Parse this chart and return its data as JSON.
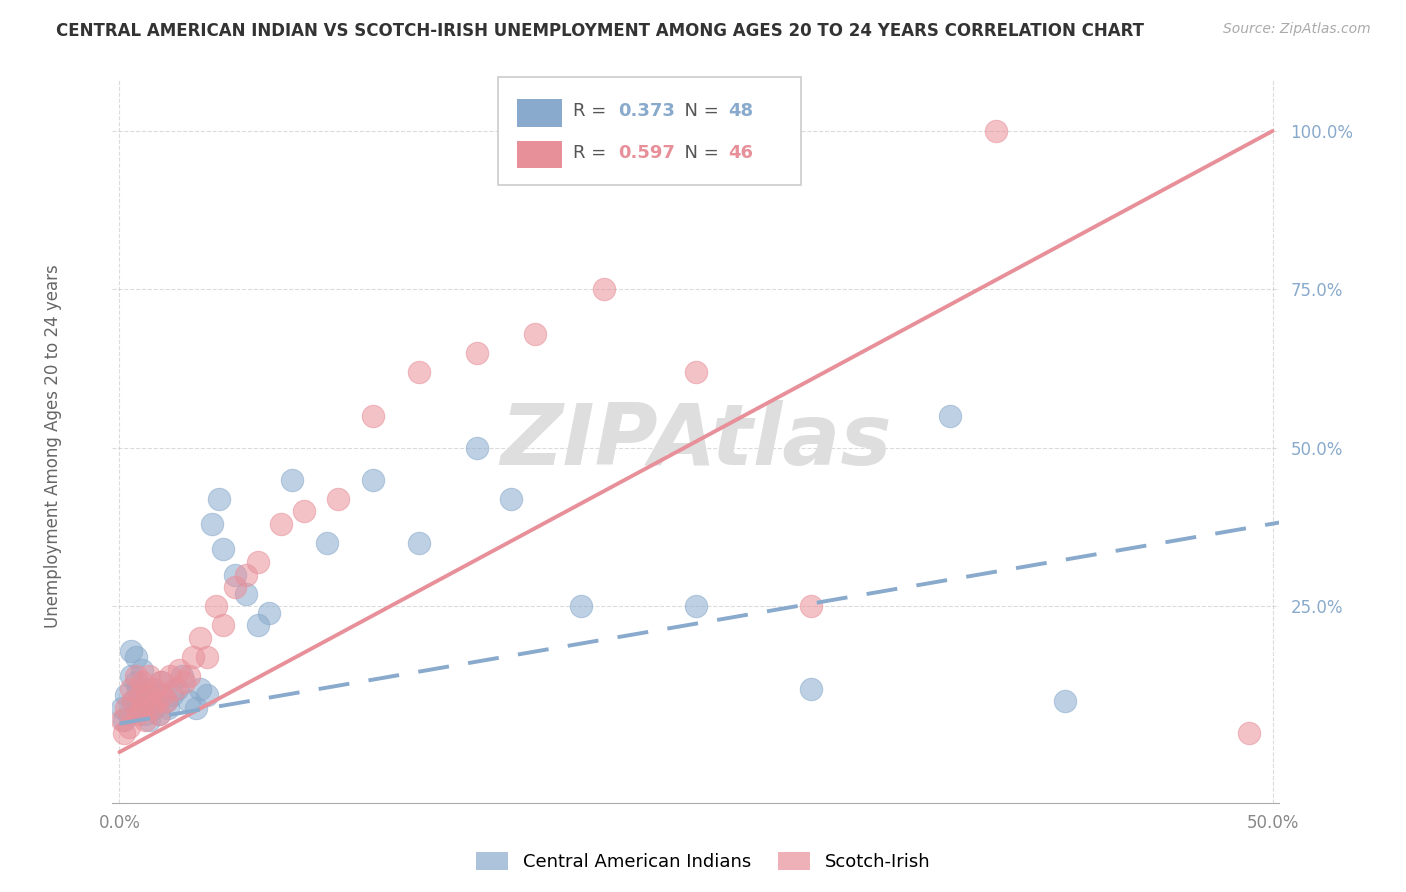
{
  "title": "CENTRAL AMERICAN INDIAN VS SCOTCH-IRISH UNEMPLOYMENT AMONG AGES 20 TO 24 YEARS CORRELATION CHART",
  "source": "Source: ZipAtlas.com",
  "ylabel": "Unemployment Among Ages 20 to 24 years",
  "xlim": [
    -0.003,
    0.503
  ],
  "ylim": [
    -0.06,
    1.08
  ],
  "xticks": [
    0.0,
    0.5
  ],
  "xtick_labels": [
    "0.0%",
    "50.0%"
  ],
  "yticks": [
    0.25,
    0.5,
    0.75,
    1.0
  ],
  "ytick_labels": [
    "25.0%",
    "50.0%",
    "75.0%",
    "100.0%"
  ],
  "blue_color": "#89AACC",
  "pink_color": "#E8909A",
  "blue_R": "0.373",
  "blue_N": "48",
  "pink_R": "0.597",
  "pink_N": "46",
  "blue_label": "Central American Indians",
  "pink_label": "Scotch-Irish",
  "blue_scatter_x": [
    0.001,
    0.002,
    0.003,
    0.004,
    0.005,
    0.005,
    0.006,
    0.007,
    0.007,
    0.008,
    0.009,
    0.01,
    0.01,
    0.011,
    0.012,
    0.013,
    0.014,
    0.015,
    0.016,
    0.017,
    0.018,
    0.02,
    0.021,
    0.023,
    0.025,
    0.027,
    0.03,
    0.033,
    0.035,
    0.038,
    0.04,
    0.043,
    0.045,
    0.05,
    0.055,
    0.06,
    0.065,
    0.075,
    0.09,
    0.11,
    0.13,
    0.155,
    0.17,
    0.2,
    0.25,
    0.3,
    0.36,
    0.41
  ],
  "blue_scatter_y": [
    0.09,
    0.07,
    0.11,
    0.08,
    0.14,
    0.18,
    0.1,
    0.13,
    0.17,
    0.12,
    0.09,
    0.11,
    0.15,
    0.08,
    0.1,
    0.07,
    0.12,
    0.09,
    0.11,
    0.08,
    0.13,
    0.1,
    0.09,
    0.11,
    0.12,
    0.14,
    0.1,
    0.09,
    0.12,
    0.11,
    0.38,
    0.42,
    0.34,
    0.3,
    0.27,
    0.22,
    0.24,
    0.45,
    0.35,
    0.45,
    0.35,
    0.5,
    0.42,
    0.25,
    0.25,
    0.12,
    0.55,
    0.1
  ],
  "pink_scatter_x": [
    0.001,
    0.002,
    0.003,
    0.004,
    0.005,
    0.006,
    0.007,
    0.008,
    0.009,
    0.01,
    0.01,
    0.011,
    0.012,
    0.013,
    0.014,
    0.015,
    0.016,
    0.017,
    0.018,
    0.019,
    0.02,
    0.022,
    0.024,
    0.026,
    0.028,
    0.03,
    0.032,
    0.035,
    0.038,
    0.042,
    0.045,
    0.05,
    0.055,
    0.06,
    0.07,
    0.08,
    0.095,
    0.11,
    0.13,
    0.155,
    0.18,
    0.21,
    0.25,
    0.3,
    0.38,
    0.49
  ],
  "pink_scatter_y": [
    0.07,
    0.05,
    0.09,
    0.06,
    0.12,
    0.1,
    0.14,
    0.08,
    0.11,
    0.09,
    0.13,
    0.07,
    0.11,
    0.14,
    0.09,
    0.12,
    0.1,
    0.08,
    0.13,
    0.11,
    0.1,
    0.14,
    0.12,
    0.15,
    0.13,
    0.14,
    0.17,
    0.2,
    0.17,
    0.25,
    0.22,
    0.28,
    0.3,
    0.32,
    0.38,
    0.4,
    0.42,
    0.55,
    0.62,
    0.65,
    0.68,
    0.75,
    0.62,
    0.25,
    1.0,
    0.05
  ],
  "blue_trend_x": [
    0.0,
    0.5
  ],
  "blue_trend_y": [
    0.065,
    0.375
  ],
  "pink_trend_x": [
    0.0,
    0.5
  ],
  "pink_trend_y": [
    0.02,
    1.0
  ],
  "bg_color": "#FFFFFF",
  "grid_color": "#CCCCCC",
  "tick_color": "#888888",
  "title_color": "#333333",
  "ylabel_color": "#666666",
  "watermark_color": "#DEDEDE"
}
